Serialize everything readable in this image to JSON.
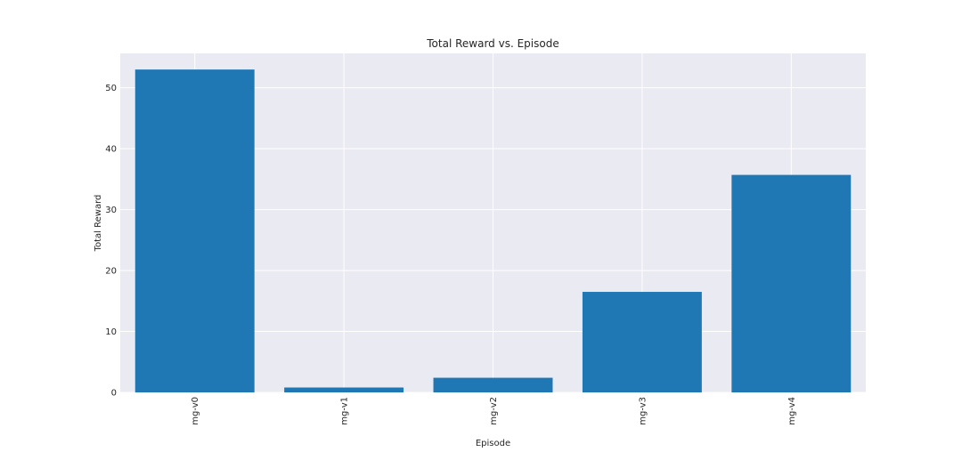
{
  "chart_data": {
    "type": "bar",
    "title": "Total Reward vs. Episode",
    "xlabel": "Episode",
    "ylabel": "Total Reward",
    "categories": [
      "mg-v0",
      "mg-v1",
      "mg-v2",
      "mg-v3",
      "mg-v4"
    ],
    "values": [
      53.0,
      0.8,
      2.4,
      16.5,
      35.7
    ],
    "ylim": [
      0,
      55.65
    ],
    "yticks": [
      0,
      10,
      20,
      30,
      40,
      50
    ],
    "ytick_labels": [
      "0",
      "10",
      "20",
      "30",
      "40",
      "50"
    ],
    "grid": true,
    "legend": "none",
    "colors": {
      "bar": "#1f77b4",
      "plot_background": "#eaeaf2",
      "grid": "#ffffff",
      "text": "#262626"
    }
  }
}
